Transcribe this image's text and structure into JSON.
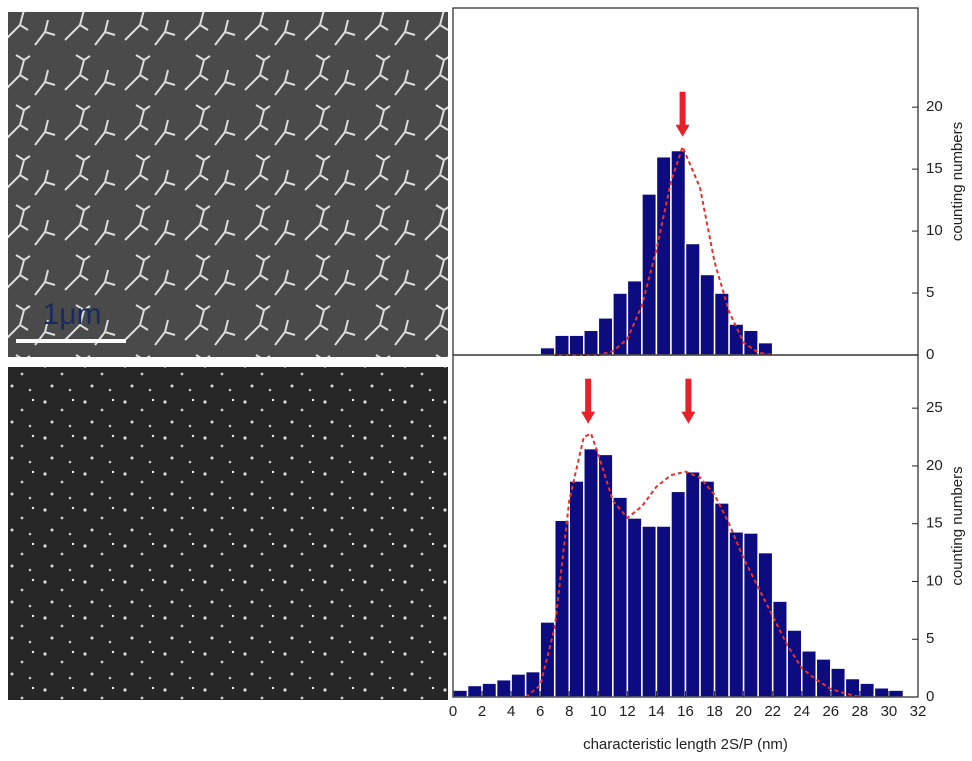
{
  "scale_bar": {
    "label": "1μm"
  },
  "chart_data": [
    {
      "type": "histogram",
      "y_label": "counting numbers",
      "color": "#0c0c80",
      "bins": [
        6,
        7,
        8,
        9,
        10,
        11,
        12,
        13,
        14,
        15,
        16,
        17,
        18,
        19,
        20,
        21,
        22
      ],
      "counts": [
        0.6,
        1.6,
        1.6,
        2,
        3,
        5,
        6,
        13,
        16,
        16.5,
        9,
        6.5,
        5,
        2.5,
        2,
        1
      ],
      "fit": {
        "color": "#e8302a",
        "x": [
          7,
          10,
          11,
          12,
          13,
          14,
          15,
          15.8,
          17,
          18,
          19,
          20,
          21,
          22
        ],
        "y": [
          0,
          0,
          0.3,
          1.3,
          4,
          8.5,
          14,
          16.8,
          13.5,
          7.5,
          3.5,
          1,
          0.2,
          0
        ]
      },
      "arrows_x": [
        15.8
      ],
      "arrow_color": "#e8202a",
      "xlim": [
        0,
        32
      ],
      "ylim": [
        0,
        28
      ],
      "yticks": [
        0,
        5,
        10,
        15,
        20
      ]
    },
    {
      "type": "histogram",
      "y_label": "counting numbers",
      "x_label": "characteristic length 2S/P (nm)",
      "color": "#0c0c80",
      "bins": [
        0,
        1,
        2,
        3,
        4,
        5,
        6,
        7,
        8,
        9,
        10,
        11,
        12,
        13,
        14,
        15,
        16,
        17,
        18,
        19,
        20,
        21,
        22,
        23,
        24,
        25,
        26,
        27,
        28,
        29,
        30,
        31
      ],
      "counts": [
        0.6,
        1,
        1.2,
        1.5,
        2,
        2.2,
        6.5,
        15.3,
        18.7,
        21.5,
        21,
        17.3,
        15.5,
        14.8,
        14.8,
        17.8,
        19.5,
        18.7,
        16.8,
        14.3,
        14.2,
        12.5,
        8.3,
        5.8,
        4,
        3.3,
        2.5,
        1.6,
        1.2,
        0.8,
        0.6
      ],
      "fit": {
        "color": "#e8302a",
        "x": [
          5,
          6,
          7,
          8,
          9,
          9.5,
          10,
          11,
          12,
          13,
          14,
          15,
          16,
          17,
          18,
          19,
          20,
          21,
          22,
          23,
          24,
          25,
          26,
          27,
          28
        ],
        "y": [
          0,
          1,
          6,
          17,
          22.5,
          22.8,
          21,
          17,
          15.5,
          16.5,
          18.2,
          19.2,
          19.5,
          19,
          17.5,
          15,
          12,
          9.5,
          7,
          4.5,
          2.5,
          1.5,
          0.7,
          0.3,
          0
        ]
      },
      "arrows_x": [
        9.3,
        16.2
      ],
      "arrow_color": "#e8202a",
      "xlim": [
        0,
        32
      ],
      "ylim": [
        0,
        29.6
      ],
      "yticks": [
        0,
        5,
        10,
        15,
        20,
        25
      ],
      "xticks": [
        0,
        2,
        4,
        6,
        8,
        10,
        12,
        14,
        16,
        18,
        20,
        22,
        24,
        26,
        28,
        30,
        32
      ]
    }
  ]
}
